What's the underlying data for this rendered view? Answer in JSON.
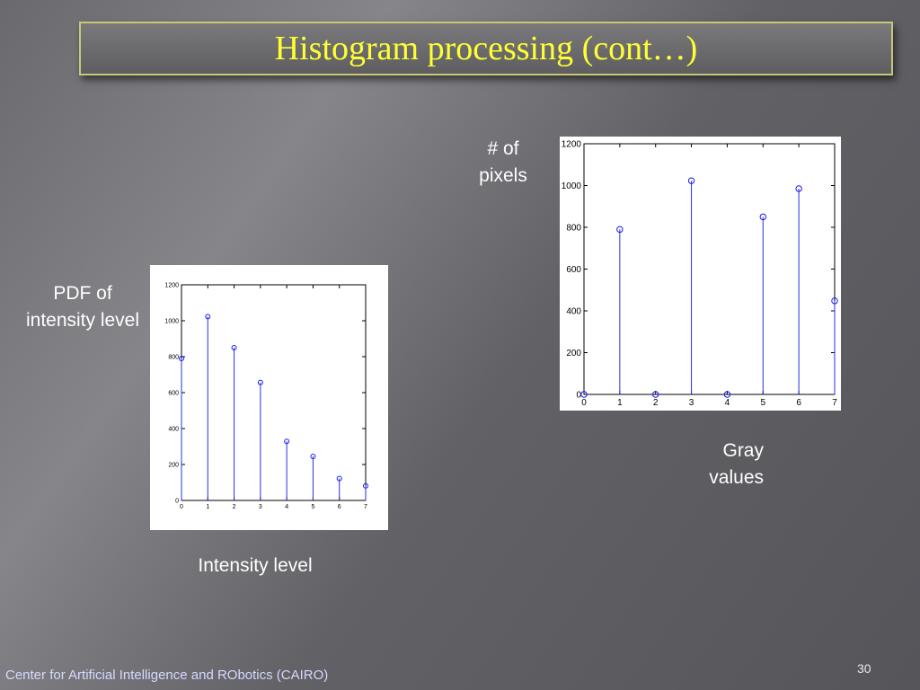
{
  "slide": {
    "title": "Histogram processing (cont…)",
    "footer": "Center for Artificial Intelligence and RObotics  (CAIRO)",
    "page_number": "30",
    "colors": {
      "title_text": "#ffff33",
      "stem": "#2233dd",
      "marker": "#1a1aee"
    }
  },
  "labels": {
    "right_y_line1": "# of",
    "right_y_line2": "pixels",
    "right_x_line1": "Gray",
    "right_x_line2": "values",
    "left_y_line1": "PDF of",
    "left_y_line2": "intensity level",
    "left_x": "Intensity level"
  },
  "chart_data": [
    {
      "type": "stem",
      "x": [
        0,
        1,
        2,
        3,
        4,
        5,
        6,
        7
      ],
      "values": [
        790,
        1023,
        850,
        656,
        329,
        245,
        122,
        81
      ],
      "xlim": [
        0,
        7
      ],
      "ylim": [
        0,
        1200
      ],
      "xticks": [
        0,
        1,
        2,
        3,
        4,
        5,
        6,
        7
      ],
      "yticks": [
        0,
        200,
        400,
        600,
        800,
        1000,
        1200
      ]
    },
    {
      "type": "stem",
      "x": [
        0,
        1,
        2,
        3,
        4,
        5,
        6,
        7
      ],
      "values": [
        0,
        790,
        0,
        1023,
        0,
        850,
        985,
        448
      ],
      "xlim": [
        0,
        7
      ],
      "ylim": [
        0,
        1200
      ],
      "xticks": [
        0,
        1,
        2,
        3,
        4,
        5,
        6,
        7
      ],
      "yticks": [
        0,
        200,
        400,
        600,
        800,
        1000,
        1200
      ]
    }
  ]
}
